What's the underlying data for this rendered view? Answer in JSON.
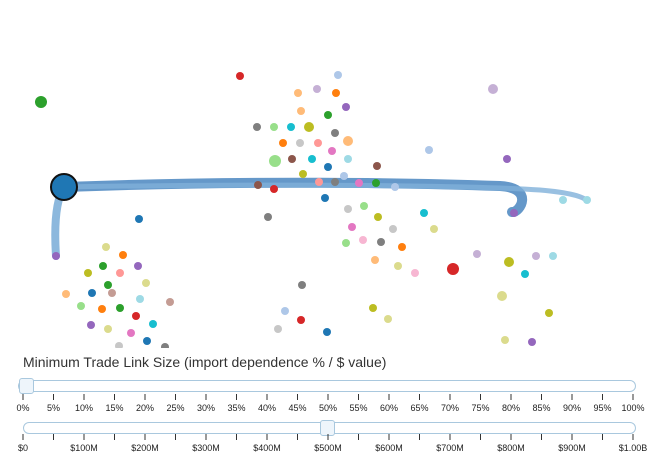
{
  "control_label": "Minimum Trade Link Size (import dependence % / $ value)",
  "percent_slider": {
    "value_percent": 0,
    "ticks": [
      "0%",
      "5%",
      "10%",
      "15%",
      "20%",
      "25%",
      "30%",
      "35%",
      "40%",
      "45%",
      "50%",
      "55%",
      "60%",
      "65%",
      "70%",
      "75%",
      "80%",
      "85%",
      "90%",
      "95%",
      "100%"
    ]
  },
  "value_slider": {
    "value_fraction": 0.5,
    "ticks": [
      "$0",
      "$100M",
      "$200M",
      "$300M",
      "$400M",
      "$500M",
      "$600M",
      "$700M",
      "$800M",
      "$900M",
      "$1.00B"
    ]
  },
  "colors": {
    "selected_node": "#1f77b4",
    "link": "#4a86c0",
    "slider_border": "#a9c8de",
    "node_palette": [
      "#1f77b4",
      "#aec7e8",
      "#ff7f0e",
      "#ffbb78",
      "#2ca02c",
      "#98df8a",
      "#d62728",
      "#ff9896",
      "#9467bd",
      "#c5b0d5",
      "#8c564b",
      "#c49c94",
      "#e377c2",
      "#f7b6d2",
      "#7f7f7f",
      "#c7c7c7",
      "#bcbd22",
      "#dbdb8d",
      "#17becf",
      "#9edae5"
    ]
  }
}
